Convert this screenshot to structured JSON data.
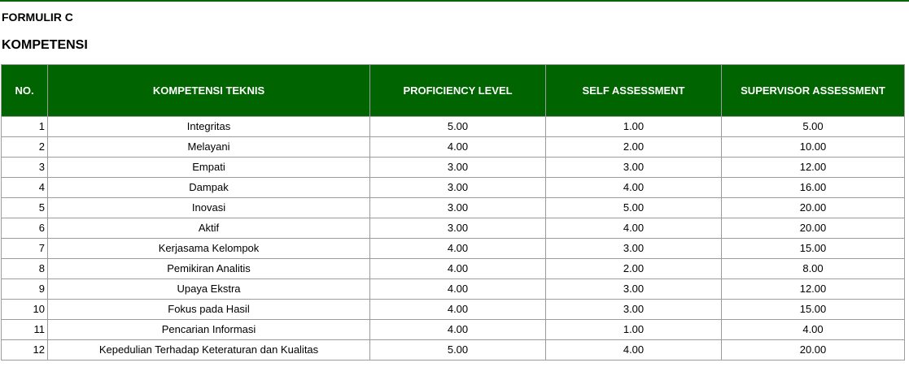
{
  "form": {
    "label": "FORMULIR C",
    "section_title": "KOMPETENSI"
  },
  "colors": {
    "header_bg": "#006400",
    "header_text": "#ffffff",
    "border": "#9c9c9c"
  },
  "table": {
    "headers": {
      "no": "NO.",
      "competency": "KOMPETENSI TEKNIS",
      "proficiency": "PROFICIENCY LEVEL",
      "self": "SELF ASSESSMENT",
      "supervisor": "SUPERVISOR ASSESSMENT"
    },
    "rows": [
      {
        "no": "1",
        "competency": "Integritas",
        "proficiency": "5.00",
        "self": "1.00",
        "supervisor": "5.00"
      },
      {
        "no": "2",
        "competency": "Melayani",
        "proficiency": "4.00",
        "self": "2.00",
        "supervisor": "10.00"
      },
      {
        "no": "3",
        "competency": "Empati",
        "proficiency": "3.00",
        "self": "3.00",
        "supervisor": "12.00"
      },
      {
        "no": "4",
        "competency": "Dampak",
        "proficiency": "3.00",
        "self": "4.00",
        "supervisor": "16.00"
      },
      {
        "no": "5",
        "competency": "Inovasi",
        "proficiency": "3.00",
        "self": "5.00",
        "supervisor": "20.00"
      },
      {
        "no": "6",
        "competency": "Aktif",
        "proficiency": "3.00",
        "self": "4.00",
        "supervisor": "20.00"
      },
      {
        "no": "7",
        "competency": "Kerjasama Kelompok",
        "proficiency": "4.00",
        "self": "3.00",
        "supervisor": "15.00"
      },
      {
        "no": "8",
        "competency": "Pemikiran Analitis",
        "proficiency": "4.00",
        "self": "2.00",
        "supervisor": "8.00"
      },
      {
        "no": "9",
        "competency": "Upaya Ekstra",
        "proficiency": "4.00",
        "self": "3.00",
        "supervisor": "12.00"
      },
      {
        "no": "10",
        "competency": "Fokus pada Hasil",
        "proficiency": "4.00",
        "self": "3.00",
        "supervisor": "15.00"
      },
      {
        "no": "11",
        "competency": "Pencarian Informasi",
        "proficiency": "4.00",
        "self": "1.00",
        "supervisor": "4.00"
      },
      {
        "no": "12",
        "competency": "Kepedulian Terhadap Keteraturan dan Kualitas",
        "proficiency": "5.00",
        "self": "4.00",
        "supervisor": "20.00"
      }
    ]
  }
}
